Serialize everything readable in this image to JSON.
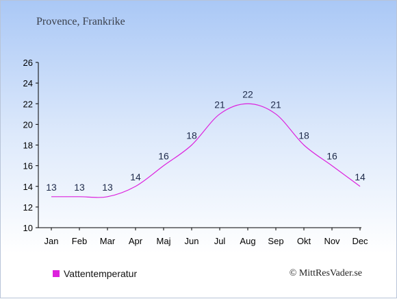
{
  "title": "Provence, Frankrike",
  "credit": "© MittResVader.se",
  "colors": {
    "line": "#dd22dd",
    "label": "#1e2a4a",
    "axis": "#000000"
  },
  "legend": {
    "label": "Vattentemperatur",
    "icon": "square-swatch"
  },
  "chart_data": {
    "type": "line",
    "title": "Provence, Frankrike",
    "xlabel": "",
    "ylabel": "",
    "categories": [
      "Jan",
      "Feb",
      "Mar",
      "Apr",
      "Maj",
      "Jun",
      "Jul",
      "Aug",
      "Sep",
      "Okt",
      "Nov",
      "Dec"
    ],
    "series": [
      {
        "name": "Vattentemperatur",
        "values": [
          13,
          13,
          13,
          14,
          16,
          18,
          21,
          22,
          21,
          18,
          16,
          14
        ]
      }
    ],
    "ylim": [
      10,
      26
    ],
    "yticks": [
      10,
      12,
      14,
      16,
      18,
      20,
      22,
      24,
      26
    ],
    "grid": false,
    "legend_position": "bottom-left",
    "data_labels": true
  }
}
